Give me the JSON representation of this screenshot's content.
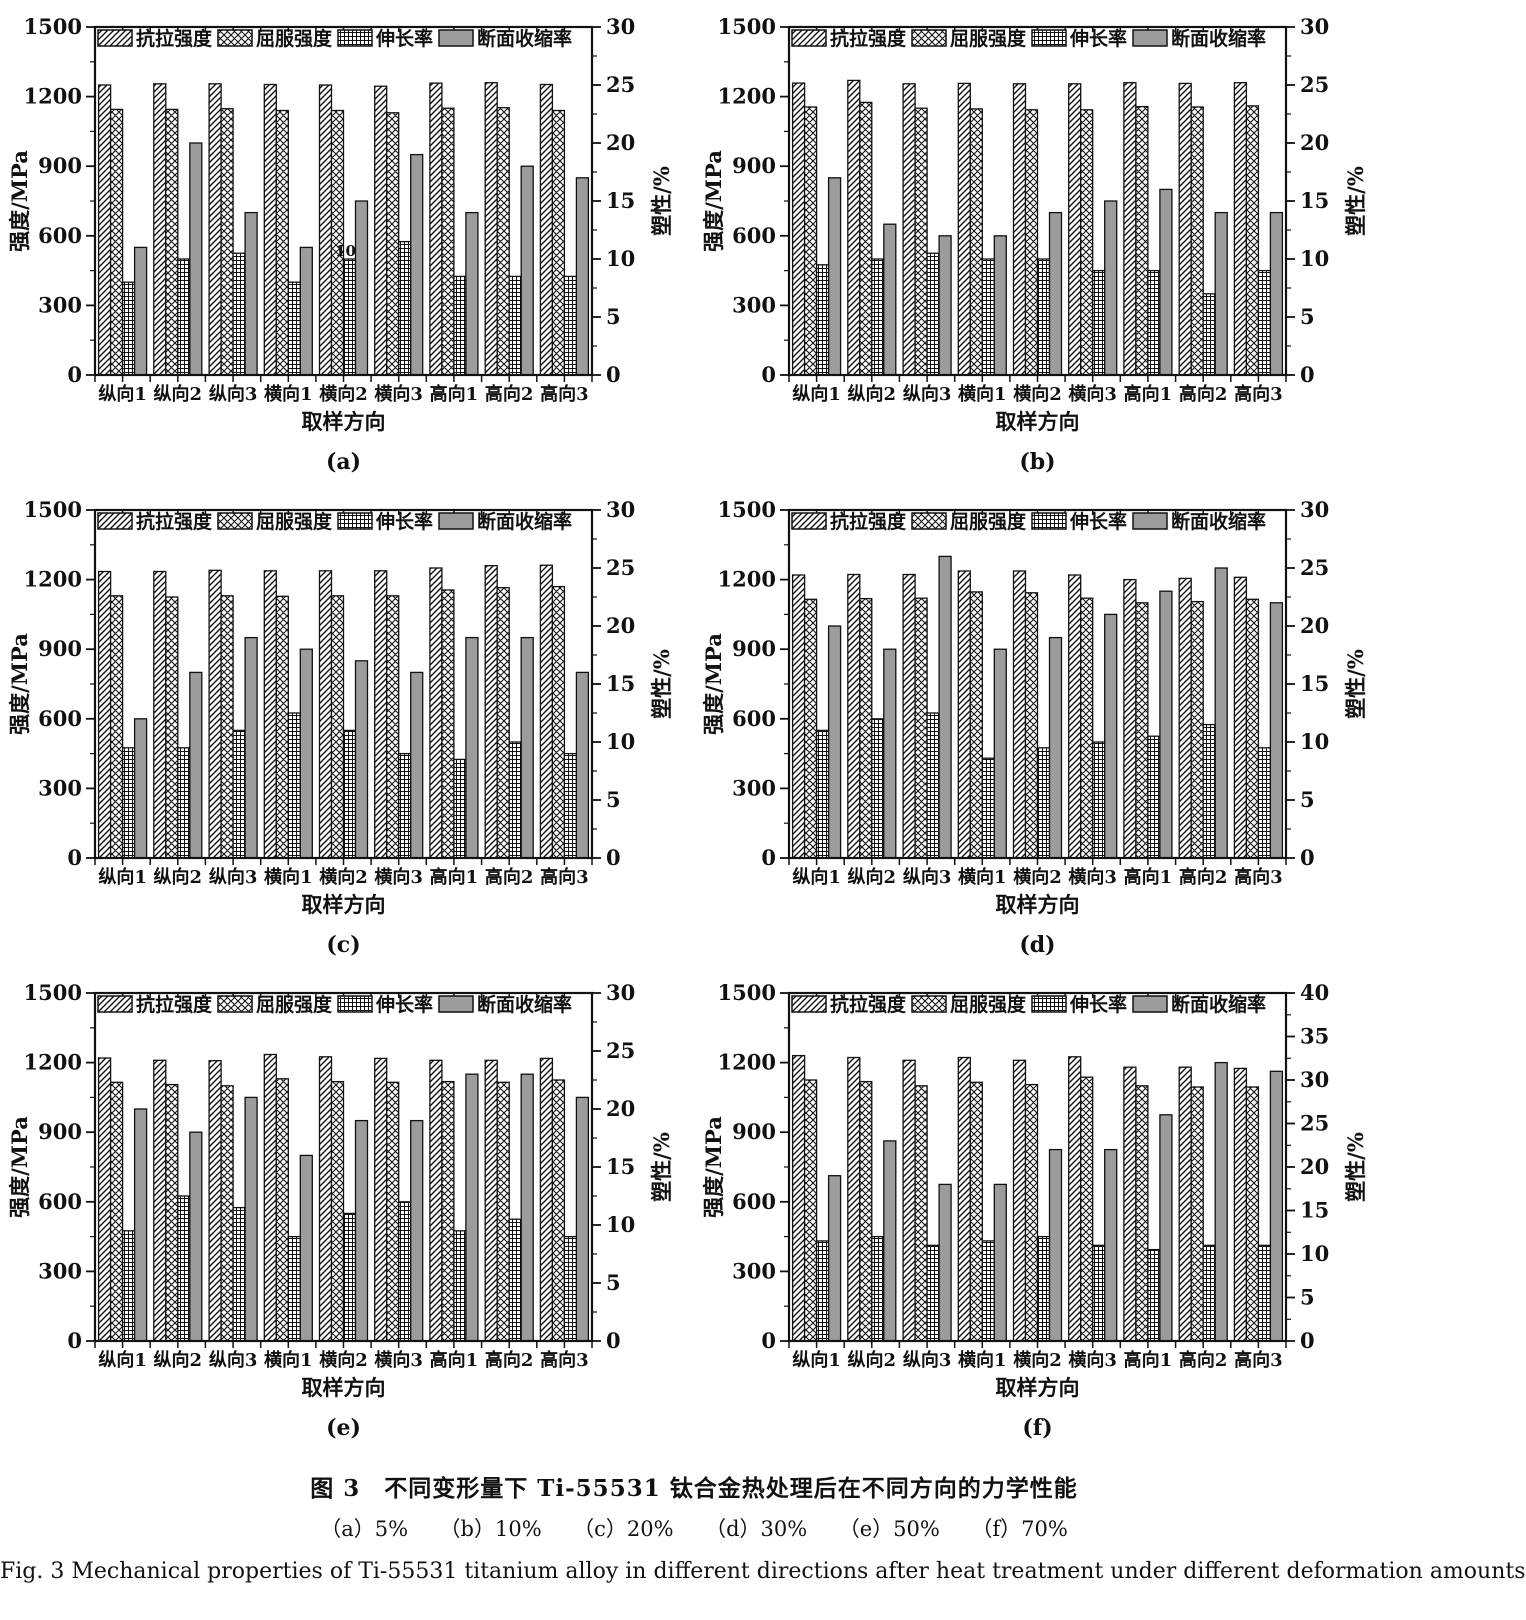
{
  "figure": {
    "caption_cn": "图 3　不同变形量下 Ti-55531 钛合金热处理后在不同方向的力学性能",
    "caption_panels": "（a）5%　　（b）10%　　（c）20%　　（d）30%　　（e）50%　　（f）70%",
    "caption_en": "Fig. 3   Mechanical properties of Ti-55531 titanium alloy in different directions after heat treatment under different deformation amounts"
  },
  "colors": {
    "ink": "#111111",
    "bar_gray": "#9c9c9c",
    "background": "#ffffff"
  },
  "chart_data": [
    {
      "type": "bar",
      "panel": "(a)",
      "deformation": "5%",
      "categories": [
        "纵向1",
        "纵向2",
        "纵向3",
        "横向1",
        "横向2",
        "横向3",
        "高向1",
        "高向2",
        "高向3"
      ],
      "xlabel": "取样方向",
      "ylabel_left": "强度/MPa",
      "ylabel_right": "塑性/%",
      "ylim_left": [
        0,
        1500
      ],
      "yticks_left": [
        0,
        300,
        600,
        900,
        1200,
        1500
      ],
      "ylim_right": [
        0,
        30
      ],
      "yticks_right": [
        0,
        5,
        10,
        15,
        20,
        25,
        30
      ],
      "legend": [
        "抗拉强度",
        "屈服强度",
        "伸长率",
        "断面收缩率"
      ],
      "series": [
        {
          "name": "抗拉强度",
          "axis": "left",
          "pattern": "diag",
          "unit": "MPa",
          "values": [
            1250,
            1255,
            1255,
            1252,
            1250,
            1245,
            1258,
            1260,
            1252
          ]
        },
        {
          "name": "屈服强度",
          "axis": "left",
          "pattern": "cross",
          "unit": "MPa",
          "values": [
            1145,
            1145,
            1148,
            1140,
            1140,
            1130,
            1150,
            1152,
            1140
          ]
        },
        {
          "name": "伸长率",
          "axis": "right",
          "pattern": "grid",
          "unit": "%",
          "values": [
            8,
            10,
            10.5,
            8,
            10,
            11.5,
            8.5,
            8.5,
            8.5
          ]
        },
        {
          "name": "断面收缩率",
          "axis": "right",
          "pattern": "solid",
          "unit": "%",
          "values": [
            11,
            20,
            14,
            11,
            15,
            19,
            14,
            18,
            17
          ]
        }
      ],
      "annotations": [
        {
          "text": "10",
          "group_index": 4,
          "series_index": 2
        }
      ]
    },
    {
      "type": "bar",
      "panel": "(b)",
      "deformation": "10%",
      "categories": [
        "纵向1",
        "纵向2",
        "纵向3",
        "横向1",
        "横向2",
        "横向3",
        "高向1",
        "高向2",
        "高向3"
      ],
      "xlabel": "取样方向",
      "ylabel_left": "强度/MPa",
      "ylabel_right": "塑性/%",
      "ylim_left": [
        0,
        1500
      ],
      "yticks_left": [
        0,
        300,
        600,
        900,
        1200,
        1500
      ],
      "ylim_right": [
        0,
        30
      ],
      "yticks_right": [
        0,
        5,
        10,
        15,
        20,
        25,
        30
      ],
      "legend": [
        "抗拉强度",
        "屈服强度",
        "伸长率",
        "断面收缩率"
      ],
      "series": [
        {
          "name": "抗拉强度",
          "axis": "left",
          "pattern": "diag",
          "unit": "MPa",
          "values": [
            1258,
            1270,
            1255,
            1257,
            1255,
            1255,
            1260,
            1257,
            1260
          ]
        },
        {
          "name": "屈服强度",
          "axis": "left",
          "pattern": "cross",
          "unit": "MPa",
          "values": [
            1155,
            1175,
            1150,
            1147,
            1143,
            1143,
            1157,
            1155,
            1160
          ]
        },
        {
          "name": "伸长率",
          "axis": "right",
          "pattern": "grid",
          "unit": "%",
          "values": [
            9.5,
            10,
            10.5,
            10,
            10,
            9,
            9,
            7,
            9
          ]
        },
        {
          "name": "断面收缩率",
          "axis": "right",
          "pattern": "solid",
          "unit": "%",
          "values": [
            17,
            13,
            12,
            12,
            14,
            15,
            16,
            14,
            14
          ]
        }
      ],
      "annotations": []
    },
    {
      "type": "bar",
      "panel": "(c)",
      "deformation": "20%",
      "categories": [
        "纵向1",
        "纵向2",
        "纵向3",
        "横向1",
        "横向2",
        "横向3",
        "高向1",
        "高向2",
        "高向3"
      ],
      "xlabel": "取样方向",
      "ylabel_left": "强度/MPa",
      "ylabel_right": "塑性/%",
      "ylim_left": [
        0,
        1500
      ],
      "yticks_left": [
        0,
        300,
        600,
        900,
        1200,
        1500
      ],
      "ylim_right": [
        0,
        30
      ],
      "yticks_right": [
        0,
        5,
        10,
        15,
        20,
        25,
        30
      ],
      "legend": [
        "抗拉强度",
        "屈服强度",
        "伸长率",
        "断面收缩率"
      ],
      "series": [
        {
          "name": "抗拉强度",
          "axis": "left",
          "pattern": "diag",
          "unit": "MPa",
          "values": [
            1235,
            1235,
            1240,
            1238,
            1238,
            1238,
            1250,
            1260,
            1262
          ]
        },
        {
          "name": "屈服强度",
          "axis": "left",
          "pattern": "cross",
          "unit": "MPa",
          "values": [
            1130,
            1125,
            1130,
            1128,
            1130,
            1130,
            1155,
            1165,
            1170
          ]
        },
        {
          "name": "伸长率",
          "axis": "right",
          "pattern": "grid",
          "unit": "%",
          "values": [
            9.5,
            9.5,
            11,
            12.5,
            11,
            9,
            8.5,
            10,
            9
          ]
        },
        {
          "name": "断面收缩率",
          "axis": "right",
          "pattern": "solid",
          "unit": "%",
          "values": [
            12,
            16,
            19,
            18,
            17,
            16,
            19,
            19,
            16
          ]
        }
      ],
      "annotations": []
    },
    {
      "type": "bar",
      "panel": "(d)",
      "deformation": "30%",
      "categories": [
        "纵向1",
        "纵向2",
        "纵向3",
        "横向1",
        "横向2",
        "横向3",
        "高向1",
        "高向2",
        "高向3"
      ],
      "xlabel": "取样方向",
      "ylabel_left": "强度/MPa",
      "ylabel_right": "塑性/%",
      "ylim_left": [
        0,
        1500
      ],
      "yticks_left": [
        0,
        300,
        600,
        900,
        1200,
        1500
      ],
      "ylim_right": [
        0,
        30
      ],
      "yticks_right": [
        0,
        5,
        10,
        15,
        20,
        25,
        30
      ],
      "legend": [
        "抗拉强度",
        "屈服强度",
        "伸长率",
        "断面收缩率"
      ],
      "series": [
        {
          "name": "抗拉强度",
          "axis": "left",
          "pattern": "diag",
          "unit": "MPa",
          "values": [
            1220,
            1222,
            1222,
            1237,
            1237,
            1220,
            1200,
            1205,
            1210
          ]
        },
        {
          "name": "屈服强度",
          "axis": "left",
          "pattern": "cross",
          "unit": "MPa",
          "values": [
            1115,
            1118,
            1120,
            1147,
            1143,
            1120,
            1100,
            1105,
            1115
          ]
        },
        {
          "name": "伸长率",
          "axis": "right",
          "pattern": "grid",
          "unit": "%",
          "values": [
            11,
            12,
            12.5,
            8.6,
            9.5,
            10,
            10.5,
            11.5,
            9.5
          ]
        },
        {
          "name": "断面收缩率",
          "axis": "right",
          "pattern": "solid",
          "unit": "%",
          "values": [
            20,
            18,
            26,
            18,
            19,
            21,
            23,
            25,
            22
          ]
        }
      ],
      "annotations": []
    },
    {
      "type": "bar",
      "panel": "(e)",
      "deformation": "50%",
      "categories": [
        "纵向1",
        "纵向2",
        "纵向3",
        "横向1",
        "横向2",
        "横向3",
        "高向1",
        "高向2",
        "高向3"
      ],
      "xlabel": "取样方向",
      "ylabel_left": "强度/MPa",
      "ylabel_right": "塑性/%",
      "ylim_left": [
        0,
        1500
      ],
      "yticks_left": [
        0,
        300,
        600,
        900,
        1200,
        1500
      ],
      "ylim_right": [
        0,
        30
      ],
      "yticks_right": [
        0,
        5,
        10,
        15,
        20,
        25,
        30
      ],
      "legend": [
        "抗拉强度",
        "屈服强度",
        "伸长率",
        "断面收缩率"
      ],
      "series": [
        {
          "name": "抗拉强度",
          "axis": "left",
          "pattern": "diag",
          "unit": "MPa",
          "values": [
            1220,
            1210,
            1208,
            1235,
            1225,
            1218,
            1210,
            1210,
            1218
          ]
        },
        {
          "name": "屈服强度",
          "axis": "left",
          "pattern": "cross",
          "unit": "MPa",
          "values": [
            1115,
            1105,
            1100,
            1130,
            1118,
            1115,
            1118,
            1115,
            1125
          ]
        },
        {
          "name": "伸长率",
          "axis": "right",
          "pattern": "grid",
          "unit": "%",
          "values": [
            9.5,
            12.5,
            11.5,
            9,
            11,
            12,
            9.5,
            10.5,
            9
          ]
        },
        {
          "name": "断面收缩率",
          "axis": "right",
          "pattern": "solid",
          "unit": "%",
          "values": [
            20,
            18,
            21,
            16,
            19,
            19,
            23,
            23,
            21
          ]
        }
      ],
      "annotations": []
    },
    {
      "type": "bar",
      "panel": "(f)",
      "deformation": "70%",
      "categories": [
        "纵向1",
        "纵向2",
        "纵向3",
        "横向1",
        "横向2",
        "横向3",
        "高向1",
        "高向2",
        "高向3"
      ],
      "xlabel": "取样方向",
      "ylabel_left": "强度/MPa",
      "ylabel_right": "塑性/%",
      "ylim_left": [
        0,
        1500
      ],
      "yticks_left": [
        0,
        300,
        600,
        900,
        1200,
        1500
      ],
      "ylim_right": [
        0,
        40
      ],
      "yticks_right": [
        0,
        5,
        10,
        15,
        20,
        25,
        30,
        35,
        40
      ],
      "legend": [
        "抗拉强度",
        "屈服强度",
        "伸长率",
        "断面收缩率"
      ],
      "series": [
        {
          "name": "抗拉强度",
          "axis": "left",
          "pattern": "diag",
          "unit": "MPa",
          "values": [
            1230,
            1222,
            1210,
            1222,
            1210,
            1225,
            1180,
            1180,
            1175
          ]
        },
        {
          "name": "屈服强度",
          "axis": "left",
          "pattern": "cross",
          "unit": "MPa",
          "values": [
            1125,
            1118,
            1100,
            1115,
            1105,
            1137,
            1100,
            1095,
            1095
          ]
        },
        {
          "name": "伸长率",
          "axis": "right",
          "pattern": "grid",
          "unit": "%",
          "values": [
            11.5,
            12,
            11,
            11.5,
            12,
            11,
            10.5,
            11,
            11
          ]
        },
        {
          "name": "断面收缩率",
          "axis": "right",
          "pattern": "solid",
          "unit": "%",
          "values": [
            19,
            23,
            18,
            18,
            22,
            22,
            26,
            32,
            31
          ]
        }
      ],
      "annotations": []
    }
  ]
}
